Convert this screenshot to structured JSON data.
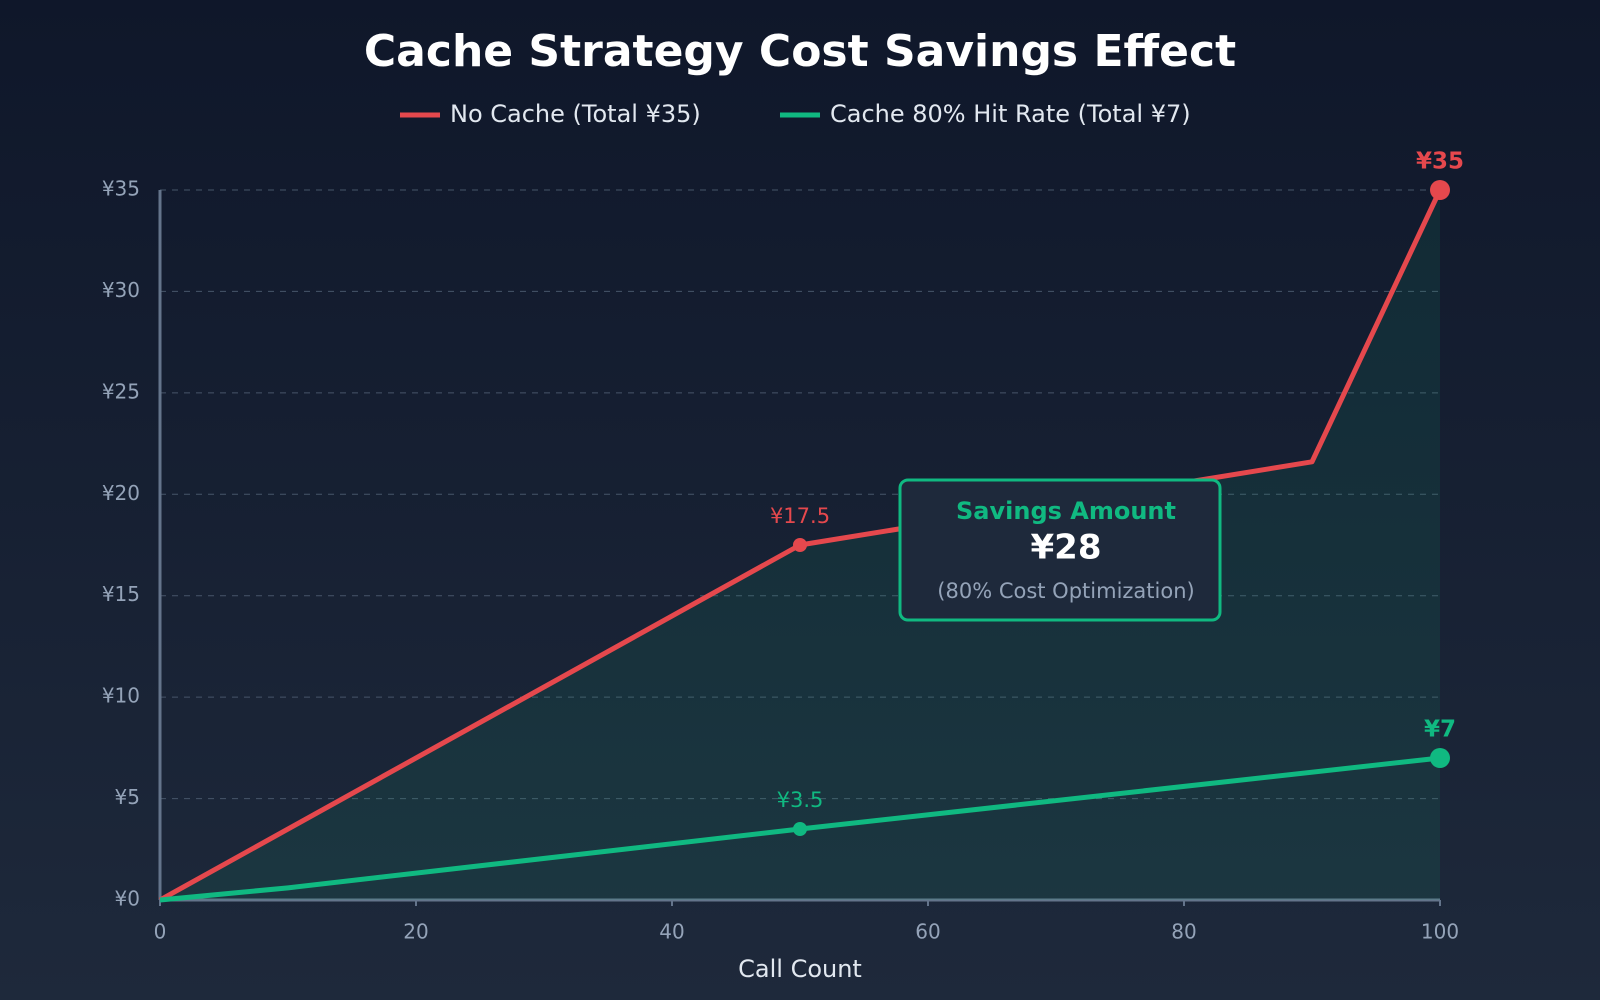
{
  "chart_data": {
    "type": "line",
    "title": "Cache Strategy Cost Savings Effect",
    "x_label": "Call Count",
    "xlim": [
      0,
      100
    ],
    "xticks": [
      0,
      20,
      40,
      60,
      80,
      100
    ],
    "ylim": [
      0,
      35
    ],
    "yticks": [
      {
        "value": 0,
        "label": "¥0"
      },
      {
        "value": 5,
        "label": "¥5"
      },
      {
        "value": 10,
        "label": "¥10"
      },
      {
        "value": 15,
        "label": "¥15"
      },
      {
        "value": 20,
        "label": "¥20"
      },
      {
        "value": 25,
        "label": "¥25"
      },
      {
        "value": 30,
        "label": "¥30"
      },
      {
        "value": 35,
        "label": "¥35"
      }
    ],
    "grid": true,
    "series": [
      {
        "name": "No Cache (Total ¥35)",
        "color": "#e5484d",
        "x": [
          0,
          50,
          90,
          100
        ],
        "values": [
          0,
          17.5,
          21.6,
          35
        ],
        "value_labels": [
          null,
          "¥17.5",
          null,
          "¥35"
        ]
      },
      {
        "name": "Cache 80% Hit Rate (Total ¥7)",
        "color": "#10b981",
        "x": [
          0,
          10,
          50,
          100
        ],
        "values": [
          0,
          0.6,
          3.5,
          7
        ],
        "value_labels": [
          null,
          null,
          "¥3.5",
          "¥7"
        ]
      }
    ],
    "annotation": {
      "title": "Savings Amount",
      "value": "¥28",
      "note": "(80% Cost Optimization)"
    }
  }
}
